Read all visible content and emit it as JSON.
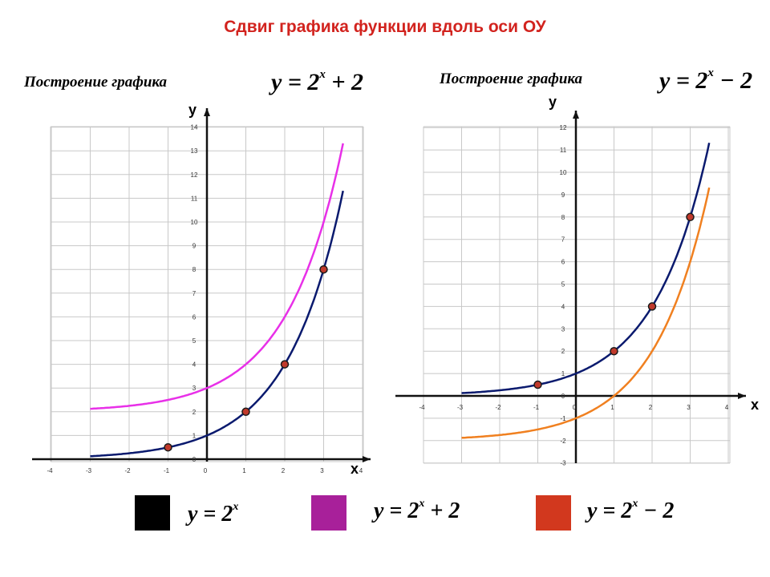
{
  "title": "Сдвиг  графика  функции  вдоль  оси ОУ",
  "left_panel": {
    "subtitle": "Построение графика",
    "formula": {
      "lhs": "y = 2",
      "exp": "x",
      "tail": " + 2"
    }
  },
  "right_panel": {
    "subtitle": "Построение графика",
    "formula": {
      "lhs": "y = 2",
      "exp": "x",
      "tail": " − 2"
    }
  },
  "legend": [
    {
      "lhs": "y = 2",
      "exp": "x",
      "tail": "",
      "color": "#000000"
    },
    {
      "lhs": "y = 2",
      "exp": "x",
      "tail": " + 2",
      "color": "#a8209a"
    },
    {
      "lhs": "y = 2",
      "exp": "x",
      "tail": " − 2",
      "color": "#d2381e"
    }
  ],
  "chart_data": [
    {
      "type": "line",
      "xlabel": "x",
      "ylabel": "y",
      "xlim": [
        -4,
        4
      ],
      "ylim": [
        0,
        14
      ],
      "x_ticks": [
        "-4",
        "-3",
        "-2",
        "-1",
        "0",
        "1",
        "2",
        "3",
        "4"
      ],
      "y_ticks": [
        "0",
        "1",
        "2",
        "3",
        "4",
        "5",
        "6",
        "7",
        "8",
        "9",
        "10",
        "11",
        "12",
        "13",
        "14"
      ],
      "grid": true,
      "series": [
        {
          "formula": "2^x",
          "color": "#0a1a6e",
          "x_range": [
            -3,
            3.5
          ]
        },
        {
          "formula": "2^x + 2",
          "color": "#e830e8",
          "x_range": [
            -3,
            3.5
          ]
        }
      ],
      "points": [
        {
          "x": -1,
          "y": 0.5
        },
        {
          "x": 1,
          "y": 2
        },
        {
          "x": 2,
          "y": 4
        },
        {
          "x": 3,
          "y": 8
        }
      ]
    },
    {
      "type": "line",
      "xlabel": "x",
      "ylabel": "y",
      "xlim": [
        -4,
        4
      ],
      "ylim": [
        -3,
        12
      ],
      "x_ticks": [
        "-4",
        "-3",
        "-2",
        "-1",
        "0",
        "1",
        "2",
        "3",
        "4"
      ],
      "y_ticks": [
        "-3",
        "-2",
        "-1",
        "0",
        "1",
        "2",
        "3",
        "4",
        "5",
        "6",
        "7",
        "8",
        "9",
        "10",
        "11",
        "12"
      ],
      "grid": true,
      "series": [
        {
          "formula": "2^x",
          "color": "#0a1a6e",
          "x_range": [
            -3,
            3.5
          ]
        },
        {
          "formula": "2^x - 2",
          "color": "#f08020",
          "x_range": [
            -3,
            3.5
          ]
        }
      ],
      "points": [
        {
          "x": -1,
          "y": 0.5
        },
        {
          "x": 1,
          "y": 2
        },
        {
          "x": 2,
          "y": 4
        },
        {
          "x": 3,
          "y": 8
        }
      ]
    }
  ]
}
